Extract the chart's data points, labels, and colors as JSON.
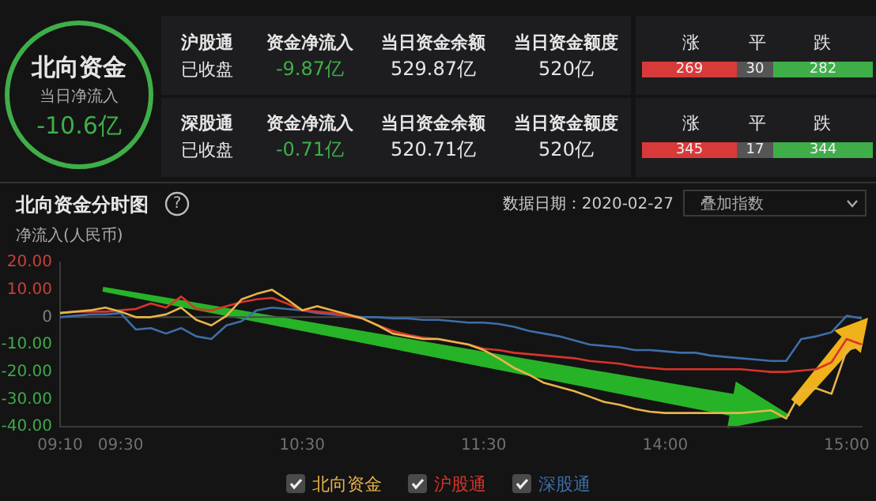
{
  "chart_data": [
    {
      "type": "other",
      "annotations": [
        "北向资金",
        "当日净流入",
        "-10.6亿",
        "沪股通",
        "已收盘",
        "资金净流入",
        "-9.87亿",
        "当日资金余额",
        "529.87亿",
        "当日资金额度",
        "520亿",
        "涨",
        "平",
        "跌",
        "269",
        "30",
        "282",
        "深股通",
        "已收盘",
        "资金净流入",
        "-0.71亿",
        "当日资金余额",
        "520.71亿",
        "当日资金额度",
        "520亿",
        "涨",
        "平",
        "跌",
        "345",
        "17",
        "344"
      ]
    },
    {
      "type": "line",
      "title": "北向资金分时图",
      "ylabel": "净流入(人民币)",
      "annotations": [
        "?",
        "数据日期：2020-02-27",
        "叠加指数"
      ],
      "legend": "bottom",
      "grid": false,
      "categories": [
        "09:10",
        null,
        null,
        null,
        "09:30",
        null,
        null,
        null,
        null,
        null,
        null,
        null,
        null,
        null,
        null,
        null,
        "10:30",
        null,
        null,
        null,
        null,
        null,
        null,
        null,
        null,
        null,
        null,
        null,
        "11:30",
        null,
        null,
        null,
        null,
        null,
        null,
        null,
        null,
        null,
        null,
        null,
        "14:00",
        null,
        null,
        null,
        null,
        null,
        null,
        null,
        null,
        null,
        null,
        null,
        "15:00",
        null
      ],
      "ylim": [
        -40,
        20
      ],
      "yticks": [
        {
          "value": 20,
          "label": "20.00"
        },
        {
          "value": 10,
          "label": "10.00"
        },
        0,
        {
          "value": -10,
          "label": "-10.00"
        },
        {
          "value": -20,
          "label": "-20.00"
        },
        {
          "value": -30,
          "label": "-30.00"
        },
        {
          "value": -40,
          "label": "-40.00"
        }
      ],
      "ref_lines": [
        {
          "axis": "y",
          "value": 0,
          "color": "#4a4a4a"
        }
      ],
      "series": [
        {
          "name": "北向资金",
          "color": "#e8b54a",
          "values": [
            1.5,
            2,
            2.5,
            3.5,
            2,
            0,
            0,
            1,
            3.5,
            -1,
            -3,
            0.5,
            6.5,
            8.5,
            10,
            6.5,
            2.5,
            4,
            2.5,
            1,
            -0.5,
            -3,
            -6,
            -7,
            -8,
            -8,
            -9,
            -10,
            -12,
            -15,
            -18.5,
            -21,
            -24,
            -25.5,
            -27,
            -29,
            -31,
            -32,
            -33.5,
            -34.5,
            -35,
            -35,
            -35,
            -35,
            -35,
            -35,
            -34.5,
            -34,
            -37,
            -27,
            -26,
            -28,
            -12,
            -10.5
          ]
        },
        {
          "name": "沪股通",
          "color": "#d9342b",
          "values": [
            1.5,
            2,
            2,
            2,
            2.5,
            3,
            5,
            3.5,
            7.5,
            3,
            2.5,
            4,
            5.5,
            6.5,
            7,
            5,
            2.5,
            2,
            1.5,
            0.5,
            -0.5,
            -3,
            -5,
            -6.5,
            -7.5,
            -8,
            -9,
            -10,
            -11.5,
            -12,
            -13,
            -13.5,
            -14,
            -14.5,
            -15,
            -16,
            -16.5,
            -17,
            -18,
            -18.5,
            -19,
            -19,
            -19,
            -19,
            -19,
            -19,
            -19.5,
            -20,
            -20,
            -19.5,
            -19,
            -16.5,
            -8,
            -10
          ]
        },
        {
          "name": "深股通",
          "color": "#3d6ea8",
          "values": [
            0,
            0.5,
            1,
            1,
            1.5,
            -4.5,
            -4,
            -6,
            -4,
            -7,
            -8,
            -3,
            -1.5,
            2.5,
            3.5,
            3,
            2.5,
            1.5,
            1,
            0.5,
            0,
            0,
            -0.5,
            -0.5,
            -1,
            -1,
            -1.5,
            -2,
            -2,
            -2.5,
            -3.5,
            -5,
            -6,
            -7,
            -8.5,
            -10,
            -10.5,
            -11,
            -12,
            -12,
            -12.5,
            -13,
            -13,
            -14,
            -14.5,
            -15,
            -15.5,
            -16,
            -16,
            -8,
            -7,
            -5.5,
            0.5,
            -0.5
          ]
        }
      ]
    }
  ]
}
